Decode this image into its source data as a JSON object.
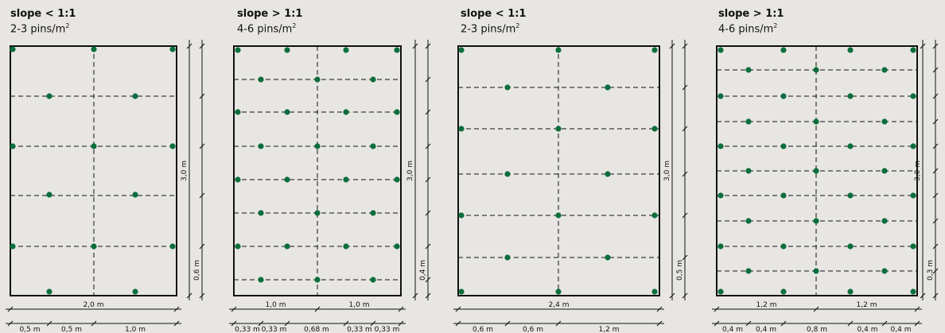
{
  "colors": {
    "background": "#e8e6e3",
    "pin": "#0b6e3d",
    "line": "#111111"
  },
  "panels": [
    {
      "title": "slope < 1:1",
      "density": "2-3 pins/m",
      "density_sup": "2",
      "width_label": "2,0 m",
      "height_label": "3,0 m",
      "row_spacing_label": "0,6 m",
      "bottom_labels": [
        "0,5 m",
        "0,5 m",
        "1,0 m"
      ]
    },
    {
      "title": "slope > 1:1",
      "density": "4-6 pins/m",
      "density_sup": "2",
      "width_labels": [
        "1,0 m",
        "1,0 m"
      ],
      "height_label": "3,0 m",
      "row_spacing_label": "0,4 m",
      "bottom_labels": [
        "0,33 m",
        "0,33 m",
        "0,68 m",
        "0,33 m",
        "0,33 m"
      ]
    },
    {
      "title": "slope < 1:1",
      "density": "2-3 pins/m",
      "density_sup": "2",
      "width_label": "2,4 m",
      "height_label": "3,0 m",
      "row_spacing_label": "0,5 m",
      "bottom_labels": [
        "0,6 m",
        "0,6 m",
        "1,2 m"
      ]
    },
    {
      "title": "slope > 1:1",
      "density": "4-6 pins/m",
      "density_sup": "2",
      "width_labels": [
        "1,2 m",
        "1,2 m"
      ],
      "height_label": "3,0 m",
      "row_spacing_label": "0,3 m",
      "bottom_labels": [
        "0,4 m",
        "0,4 m",
        "0,8 m",
        "0,4 m",
        "0,4 m"
      ]
    }
  ]
}
